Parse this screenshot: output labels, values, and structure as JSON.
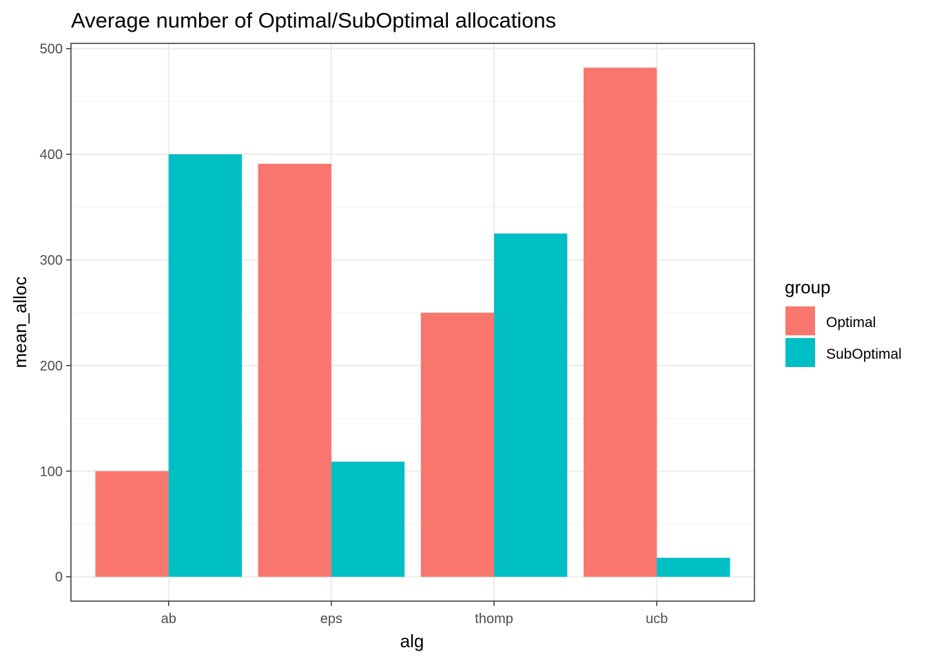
{
  "chart_data": {
    "type": "bar",
    "title": "Average number of Optimal/SubOptimal allocations",
    "xlabel": "alg",
    "ylabel": "mean_alloc",
    "categories": [
      "ab",
      "eps",
      "thomp",
      "ucb"
    ],
    "series": [
      {
        "name": "Optimal",
        "color": "#F8766D",
        "values": [
          100,
          391,
          250,
          482
        ]
      },
      {
        "name": "SubOptimal",
        "color": "#00BFC4",
        "values": [
          400,
          109,
          325,
          18
        ]
      }
    ],
    "ylim": [
      -23,
      505
    ],
    "yticks": [
      0,
      100,
      200,
      300,
      400,
      500
    ],
    "ytick_labels": [
      "0",
      "100",
      "200",
      "300",
      "400",
      "500"
    ],
    "grid": true,
    "legend": {
      "title": "group",
      "placement": "right"
    }
  }
}
